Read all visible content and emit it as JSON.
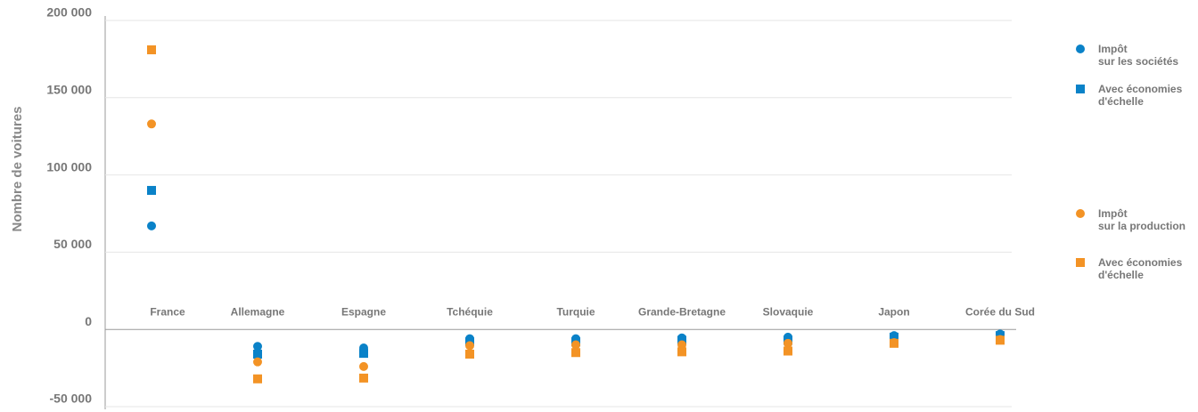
{
  "chart_data": {
    "type": "scatter",
    "y_label": "Nombre de voitures",
    "categories": [
      "France",
      "Allemagne",
      "Espagne",
      "Tchéquie",
      "Turquie",
      "Grande-Bretagne",
      "Slovaquie",
      "Japon",
      "Corée du Sud"
    ],
    "series": [
      {
        "name": "Impôt\nsur les sociétés",
        "color": "#0a82c8",
        "marker": "circle",
        "values": [
          67000,
          -11000,
          -12000,
          -6000,
          -6000,
          -5500,
          -5000,
          -4000,
          -3000
        ]
      },
      {
        "name": "Avec économies\nd'échelle",
        "color": "#0a82c8",
        "marker": "square",
        "values": [
          90000,
          -16000,
          -15500,
          -8000,
          -8000,
          -7000,
          -7000,
          -5000,
          -4000
        ]
      },
      {
        "name": "Impôt\nsur la production",
        "color": "#f39325",
        "marker": "circle",
        "values": [
          133000,
          -21000,
          -24000,
          -10500,
          -10000,
          -10000,
          -9000,
          -8500,
          -6500
        ]
      },
      {
        "name": "Avec économies\nd'échelle",
        "color": "#f39325",
        "marker": "square",
        "values": [
          181000,
          -32000,
          -31500,
          -16000,
          -15000,
          -14500,
          -14000,
          -9000,
          -7000
        ]
      }
    ],
    "ylim": [
      -50000,
      200000
    ],
    "yticks": [
      {
        "value": -50000,
        "label": "-50 000"
      },
      0,
      {
        "value": 50000,
        "label": "50 000"
      },
      {
        "value": 100000,
        "label": "100 000"
      },
      {
        "value": 150000,
        "label": "150 000"
      },
      {
        "value": 200000,
        "label": "200 000"
      }
    ],
    "grid": true
  }
}
